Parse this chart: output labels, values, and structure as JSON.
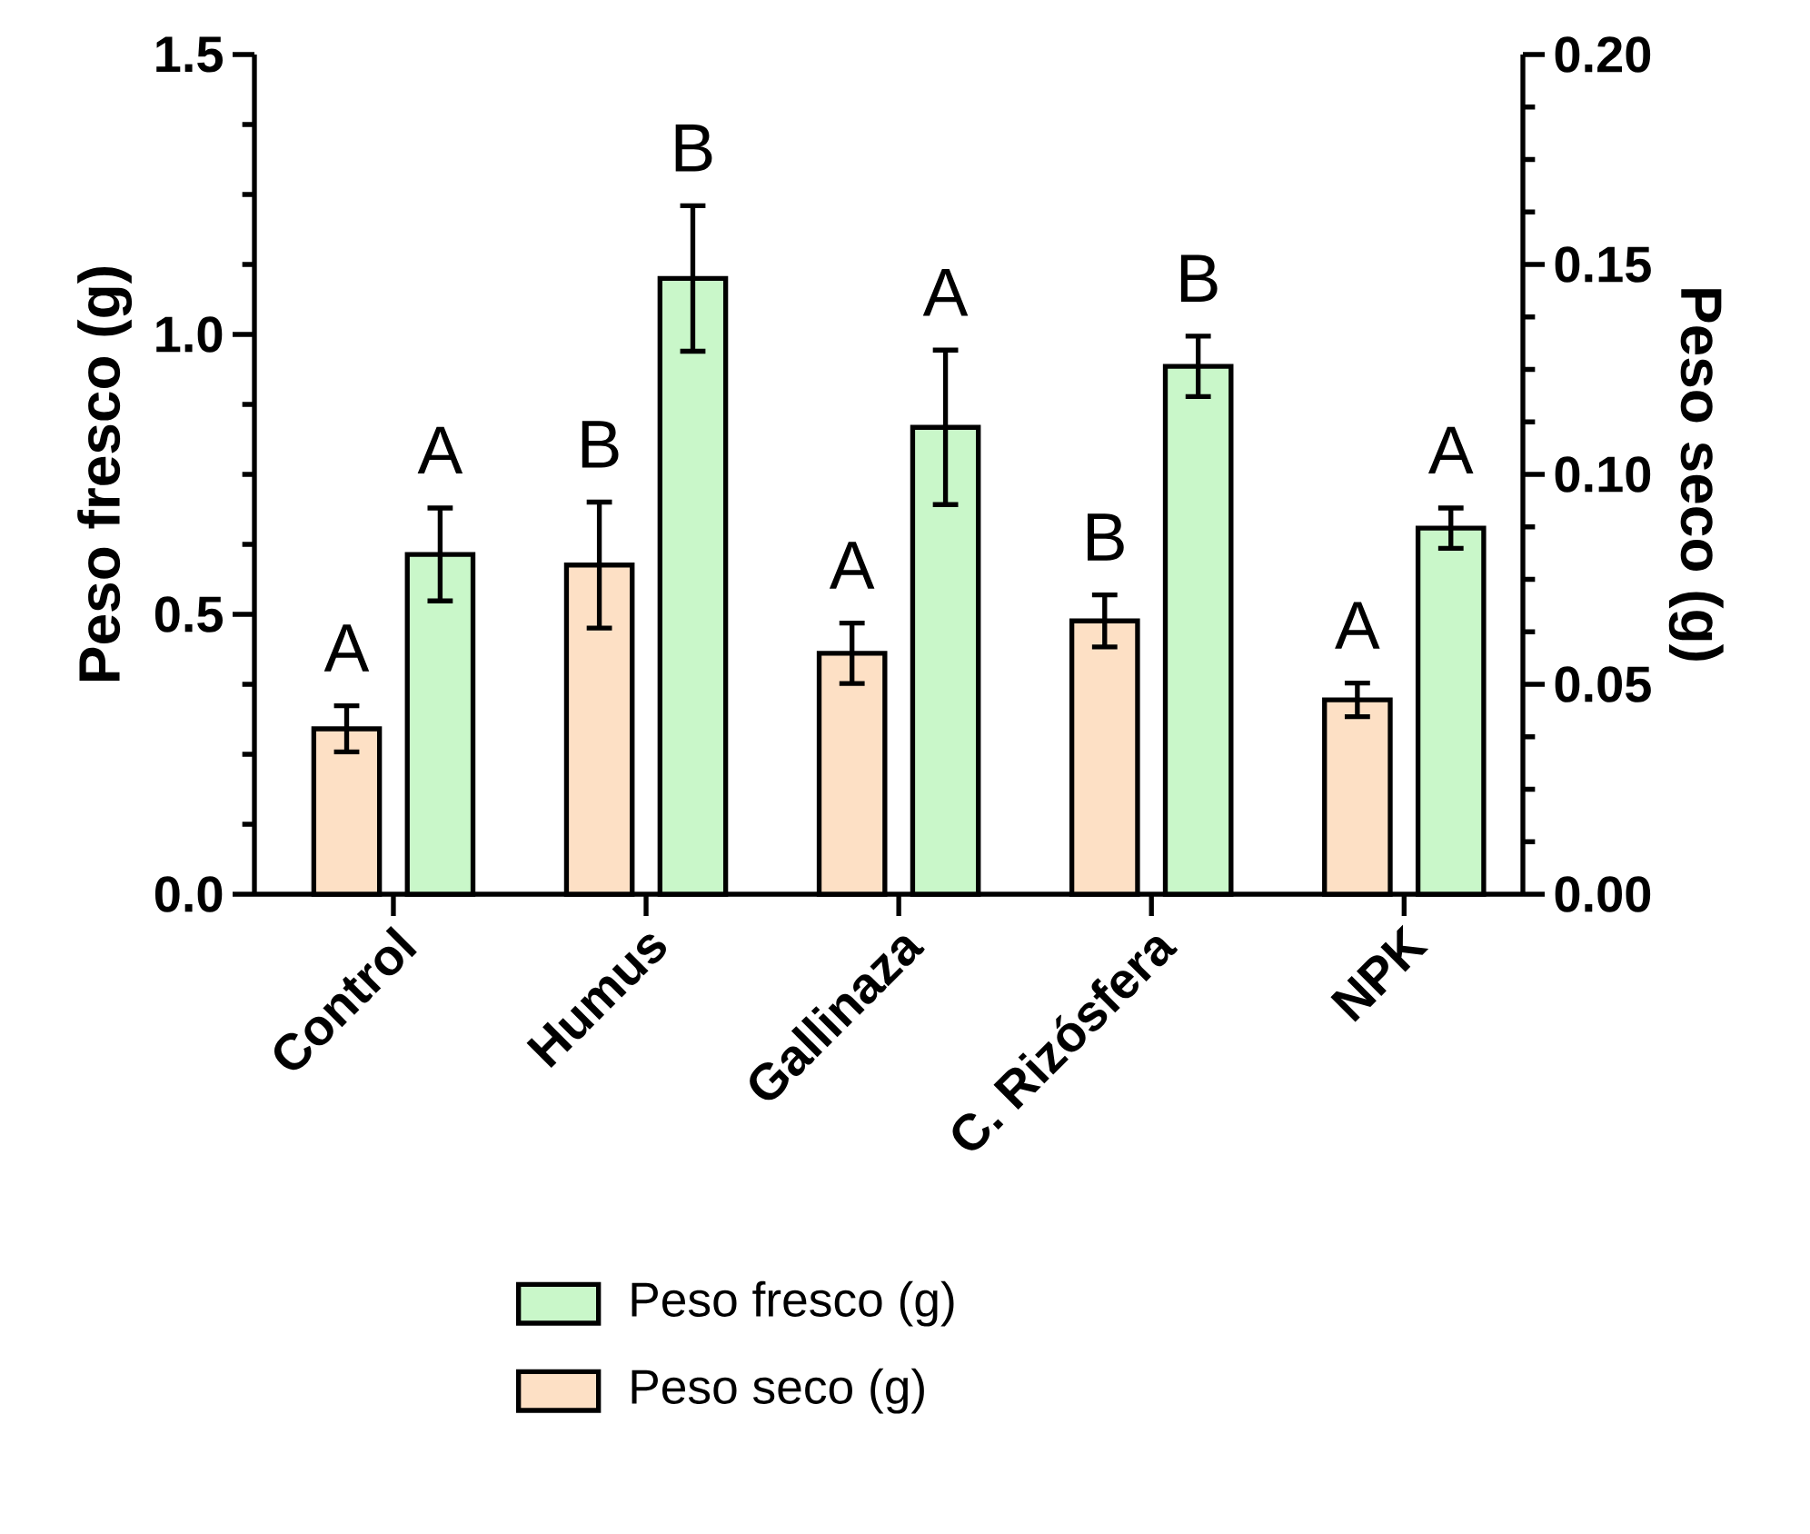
{
  "chart_data": {
    "type": "bar",
    "ylabel": "Peso fresco (g)",
    "y2label": "Peso seco (g)",
    "categories": [
      "Control",
      "Humus",
      "Gallinaza",
      "C. Rizósfera",
      "NPK"
    ],
    "series": [
      {
        "name": "Peso fresco (g)",
        "color": "#c9f7c9",
        "values": [
          0.607,
          1.1,
          0.834,
          0.943,
          0.654
        ],
        "errors": [
          0.083,
          0.13,
          0.138,
          0.054,
          0.036
        ],
        "value_labels": [
          "A",
          "B",
          "A",
          "B",
          "A"
        ]
      },
      {
        "name": "Peso seco (g)",
        "color": "#fde0c5",
        "axis": "y2",
        "values": [
          0.0394,
          0.0784,
          0.0574,
          0.0651,
          0.0463
        ],
        "errors": [
          0.0055,
          0.015,
          0.0072,
          0.0062,
          0.004
        ],
        "value_labels": [
          "A",
          "B",
          "A",
          "B",
          "A"
        ]
      }
    ],
    "ylim": [
      0,
      1.5
    ],
    "yticks": [
      {
        "value": 0,
        "label": "0.0"
      },
      0.5,
      {
        "value": 1,
        "label": "1.0"
      },
      1.5
    ],
    "y2lim": [
      0,
      0.2
    ],
    "y2ticks": [
      {
        "value": 0,
        "label": "0.00"
      },
      0.05,
      {
        "value": 0.1,
        "label": "0.10"
      },
      0.15,
      {
        "value": 0.2,
        "label": "0.20"
      }
    ],
    "legend": "bottom"
  }
}
